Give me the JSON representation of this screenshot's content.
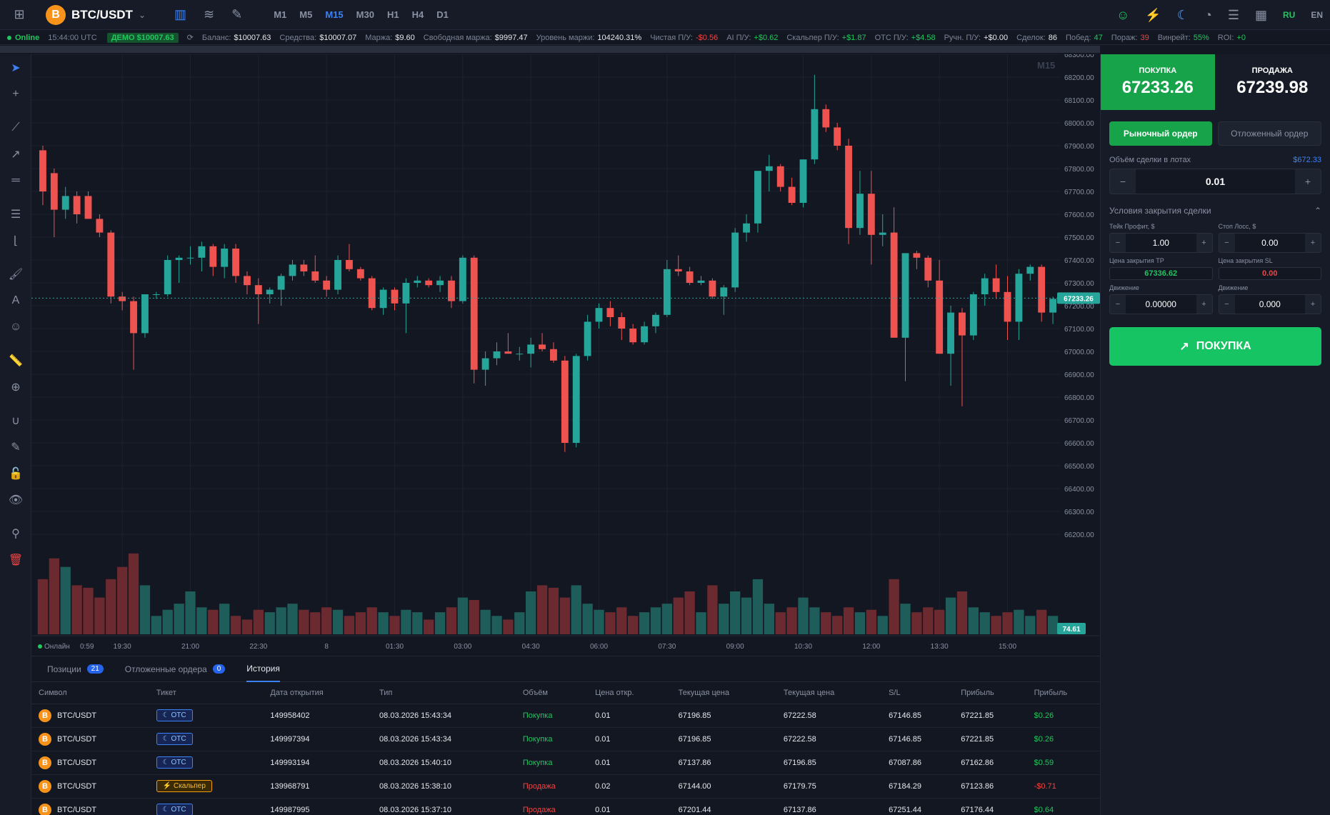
{
  "header": {
    "symbol": "BTC/USDT",
    "coin_letter": "B",
    "timeframes": [
      "M1",
      "M5",
      "M15",
      "M30",
      "H1",
      "H4",
      "D1"
    ],
    "active_timeframe": "M15",
    "languages": [
      "RU",
      "EN"
    ],
    "active_language": "RU"
  },
  "status": {
    "online": "Online",
    "time": "15:44:00 UTC",
    "demo": "ДЕМО $10007.63",
    "balance_label": "Баланс:",
    "balance": "$10007.63",
    "funds_label": "Средства:",
    "funds": "$10007.07",
    "margin_label": "Маржа:",
    "margin": "$9.60",
    "free_margin_label": "Свободная маржа:",
    "free_margin": "$9997.47",
    "margin_level_label": "Уровень маржи:",
    "margin_level": "104240.31%",
    "net_pl_label": "Чистая П/У:",
    "net_pl": "-$0.56",
    "ai_pl_label": "AI П/У:",
    "ai_pl": "+$0.62",
    "scalper_pl_label": "Скальпер П/У:",
    "scalper_pl": "+$1.87",
    "otc_pl_label": "OTC П/У:",
    "otc_pl": "+$4.58",
    "manual_pl_label": "Ручн. П/У:",
    "manual_pl": "+$0.00",
    "deals_label": "Сделок:",
    "deals": "86",
    "wins_label": "Побед:",
    "wins": "47",
    "losses_label": "Пораж:",
    "losses": "39",
    "winrate_label": "Винрейт:",
    "winrate": "55%",
    "roi_label": "ROI:",
    "roi": "+0"
  },
  "chart": {
    "timeframe_watermark": "M15",
    "current_price_label": "67233.26",
    "volume_label": "74.61",
    "bottom_left": "Онлайн",
    "bottom_time": "0:59",
    "colors": {
      "up": "#26a69a",
      "down": "#ef5350",
      "up_vol": "#1f5d5a",
      "down_vol": "#6b2a2f"
    }
  },
  "chart_data": {
    "type": "candlestick",
    "ylim": [
      66200,
      68300
    ],
    "yticks": [
      68300,
      68200,
      68100,
      68000,
      67900,
      67800,
      67700,
      67600,
      67500,
      67400,
      67300,
      67200,
      67100,
      67000,
      66900,
      66800,
      66700,
      66600,
      66500,
      66400,
      66300,
      66200
    ],
    "xticks": [
      {
        "label": "19:30",
        "i": 7
      },
      {
        "label": "21:00",
        "i": 13
      },
      {
        "label": "22:30",
        "i": 19
      },
      {
        "label": "8",
        "i": 25
      },
      {
        "label": "01:30",
        "i": 31
      },
      {
        "label": "03:00",
        "i": 37
      },
      {
        "label": "04:30",
        "i": 43
      },
      {
        "label": "06:00",
        "i": 49
      },
      {
        "label": "07:30",
        "i": 55
      },
      {
        "label": "09:00",
        "i": 61
      },
      {
        "label": "10:30",
        "i": 67
      },
      {
        "label": "12:00",
        "i": 73
      },
      {
        "label": "13:30",
        "i": 79
      },
      {
        "label": "15:00",
        "i": 85
      }
    ],
    "current_price": 67233.26,
    "candles": [
      [
        67880,
        67900,
        67640,
        67700,
        45
      ],
      [
        67780,
        67800,
        67500,
        67620,
        62
      ],
      [
        67620,
        67720,
        67580,
        67680,
        55
      ],
      [
        67680,
        67700,
        67560,
        67600,
        40
      ],
      [
        67680,
        67700,
        67580,
        67580,
        38
      ],
      [
        67580,
        67600,
        67500,
        67520,
        30
      ],
      [
        67520,
        67530,
        67210,
        67240,
        45
      ],
      [
        67240,
        67260,
        67180,
        67220,
        55
      ],
      [
        67220,
        67240,
        66920,
        67080,
        66
      ],
      [
        67080,
        67250,
        67060,
        67250,
        40
      ],
      [
        67250,
        67260,
        67230,
        67250,
        15
      ],
      [
        67250,
        67420,
        67240,
        67400,
        20
      ],
      [
        67400,
        67420,
        67300,
        67410,
        25
      ],
      [
        67410,
        67460,
        67380,
        67410,
        35
      ],
      [
        67410,
        67480,
        67350,
        67460,
        22
      ],
      [
        67460,
        67470,
        67330,
        67370,
        20
      ],
      [
        67370,
        67470,
        67320,
        67450,
        25
      ],
      [
        67450,
        67470,
        67300,
        67330,
        15
      ],
      [
        67330,
        67350,
        67250,
        67290,
        12
      ],
      [
        67290,
        67320,
        67120,
        67250,
        20
      ],
      [
        67250,
        67280,
        67210,
        67270,
        18
      ],
      [
        67270,
        67340,
        67200,
        67330,
        22
      ],
      [
        67330,
        67400,
        67310,
        67380,
        25
      ],
      [
        67380,
        67400,
        67330,
        67350,
        20
      ],
      [
        67350,
        67420,
        67300,
        67310,
        18
      ],
      [
        67310,
        67330,
        67240,
        67270,
        22
      ],
      [
        67270,
        67420,
        67250,
        67400,
        20
      ],
      [
        67400,
        67470,
        67350,
        67360,
        15
      ],
      [
        67360,
        67370,
        67310,
        67320,
        18
      ],
      [
        67320,
        67330,
        67180,
        67190,
        22
      ],
      [
        67190,
        67280,
        67160,
        67270,
        18
      ],
      [
        67270,
        67280,
        67180,
        67210,
        15
      ],
      [
        67210,
        67320,
        67080,
        67300,
        20
      ],
      [
        67300,
        67330,
        67280,
        67310,
        18
      ],
      [
        67310,
        67320,
        67280,
        67290,
        12
      ],
      [
        67290,
        67330,
        67260,
        67310,
        18
      ],
      [
        67310,
        67330,
        67190,
        67220,
        22
      ],
      [
        67220,
        67420,
        67210,
        67410,
        30
      ],
      [
        67410,
        67420,
        66860,
        66920,
        28
      ],
      [
        66920,
        67000,
        66850,
        66970,
        20
      ],
      [
        66970,
        67040,
        66940,
        67000,
        15
      ],
      [
        67000,
        67080,
        66990,
        66990,
        12
      ],
      [
        66990,
        67020,
        66960,
        66990,
        18
      ],
      [
        66990,
        67060,
        66930,
        67030,
        35
      ],
      [
        67030,
        67080,
        67000,
        67010,
        40
      ],
      [
        67010,
        67040,
        66950,
        66960,
        38
      ],
      [
        66960,
        66980,
        66560,
        66600,
        30
      ],
      [
        66600,
        66990,
        66580,
        66980,
        40
      ],
      [
        66980,
        67160,
        66960,
        67130,
        25
      ],
      [
        67130,
        67210,
        67100,
        67190,
        20
      ],
      [
        67190,
        67220,
        67110,
        67150,
        18
      ],
      [
        67150,
        67170,
        67050,
        67100,
        22
      ],
      [
        67100,
        67120,
        67030,
        67040,
        15
      ],
      [
        67040,
        67130,
        67030,
        67110,
        18
      ],
      [
        67110,
        67170,
        67080,
        67160,
        22
      ],
      [
        67160,
        67400,
        67150,
        67360,
        25
      ],
      [
        67360,
        67420,
        67330,
        67350,
        30
      ],
      [
        67350,
        67370,
        67290,
        67300,
        35
      ],
      [
        67300,
        67330,
        67290,
        67310,
        18
      ],
      [
        67310,
        67320,
        67230,
        67240,
        40
      ],
      [
        67240,
        67290,
        67160,
        67280,
        25
      ],
      [
        67280,
        67540,
        67260,
        67520,
        35
      ],
      [
        67520,
        67600,
        67480,
        67560,
        30
      ],
      [
        67560,
        67790,
        67520,
        67790,
        45
      ],
      [
        67790,
        67860,
        67700,
        67810,
        25
      ],
      [
        67810,
        67820,
        67700,
        67720,
        18
      ],
      [
        67720,
        67760,
        67640,
        67650,
        22
      ],
      [
        67650,
        67840,
        67630,
        67840,
        30
      ],
      [
        67840,
        68210,
        67820,
        68060,
        22
      ],
      [
        68060,
        68080,
        67960,
        67980,
        18
      ],
      [
        67980,
        68000,
        67880,
        67900,
        15
      ],
      [
        67900,
        67930,
        67470,
        67540,
        22
      ],
      [
        67540,
        67790,
        67510,
        67690,
        18
      ],
      [
        67690,
        67790,
        67380,
        67510,
        20
      ],
      [
        67510,
        67600,
        67460,
        67520,
        15
      ],
      [
        67520,
        67630,
        67060,
        67060,
        45
      ],
      [
        67060,
        67430,
        66870,
        67430,
        25
      ],
      [
        67430,
        67440,
        67360,
        67410,
        18
      ],
      [
        67410,
        67420,
        67280,
        67310,
        22
      ],
      [
        67310,
        67400,
        66990,
        66990,
        20
      ],
      [
        66990,
        67200,
        66850,
        67170,
        30
      ],
      [
        67170,
        67190,
        66760,
        67070,
        35
      ],
      [
        67070,
        67260,
        67050,
        67250,
        22
      ],
      [
        67250,
        67340,
        67200,
        67320,
        18
      ],
      [
        67320,
        67380,
        67230,
        67260,
        15
      ],
      [
        67260,
        67330,
        67050,
        67130,
        18
      ],
      [
        67130,
        67360,
        67050,
        67340,
        20
      ],
      [
        67340,
        67380,
        67310,
        67370,
        15
      ],
      [
        67370,
        67380,
        67130,
        67170,
        20
      ],
      [
        67170,
        67240,
        67120,
        67230,
        15
      ]
    ]
  },
  "right": {
    "buy_label": "ПОКУПКА",
    "buy_price": "67233.26",
    "sell_label": "ПРОДАЖА",
    "sell_price": "67239.98",
    "market_order": "Рыночный ордер",
    "pending_order": "Отложенный ордер",
    "volume_label": "Объём сделки в лотах",
    "volume_usd": "$672.33",
    "volume": "0.01",
    "close_conditions": "Условия закрытия сделки",
    "tp_label": "Тейк Профит, $",
    "tp": "1.00",
    "sl_label": "Стоп Лосс, $",
    "sl": "0.00",
    "tp_price_label": "Цена закрытия TP",
    "tp_price": "67336.62",
    "sl_price_label": "Цена закрытия SL",
    "sl_price": "0.00",
    "move_label_1": "Движение",
    "move_1": "0.00000",
    "move_label_2": "Движение",
    "move_2": "0.000",
    "buy_button": "ПОКУПКА"
  },
  "bottom": {
    "tabs": [
      {
        "label": "Позиции",
        "count": "21"
      },
      {
        "label": "Отложенные ордера",
        "count": "0"
      },
      {
        "label": "История",
        "count": ""
      }
    ],
    "columns": [
      "Символ",
      "Тикет",
      "Дата открытия",
      "Тип",
      "Объём",
      "Цена откр.",
      "Текущая цена",
      "Текущая цена",
      "S/L",
      "Прибыль",
      "Прибыль"
    ],
    "rows": [
      {
        "symbol": "BTC/USDT",
        "ticket": "OTC",
        "ticket_type": "otc",
        "date": "149958402",
        "type_date": "08.03.2026 15:43:34",
        "type": "Покупка",
        "vol": "0.01",
        "open": "67196.85",
        "cur": "67222.58",
        "sl": "67146.85",
        "tp": "67221.85",
        "profit": "$0.26"
      },
      {
        "symbol": "BTC/USDT",
        "ticket": "OTC",
        "ticket_type": "otc",
        "date": "149997394",
        "type_date": "08.03.2026 15:43:34",
        "type": "Покупка",
        "vol": "0.01",
        "open": "67196.85",
        "cur": "67222.58",
        "sl": "67146.85",
        "tp": "67221.85",
        "profit": "$0.26"
      },
      {
        "symbol": "BTC/USDT",
        "ticket": "OTC",
        "ticket_type": "otc",
        "date": "149993194",
        "type_date": "08.03.2026 15:40:10",
        "type": "Покупка",
        "vol": "0.01",
        "open": "67137.86",
        "cur": "67196.85",
        "sl": "67087.86",
        "tp": "67162.86",
        "profit": "$0.59"
      },
      {
        "symbol": "BTC/USDT",
        "ticket": "Скальпер",
        "ticket_type": "scalp",
        "date": "139968791",
        "type_date": "08.03.2026 15:38:10",
        "type": "Продажа",
        "vol": "0.02",
        "open": "67144.00",
        "cur": "67179.75",
        "sl": "67184.29",
        "tp": "67123.86",
        "profit": "-$0.71"
      },
      {
        "symbol": "BTC/USDT",
        "ticket": "OTC",
        "ticket_type": "otc",
        "date": "149987995",
        "type_date": "08.03.2026 15:37:10",
        "type": "Продажа",
        "vol": "0.01",
        "open": "67201.44",
        "cur": "67137.86",
        "sl": "67251.44",
        "tp": "67176.44",
        "profit": "$0.64"
      }
    ]
  }
}
